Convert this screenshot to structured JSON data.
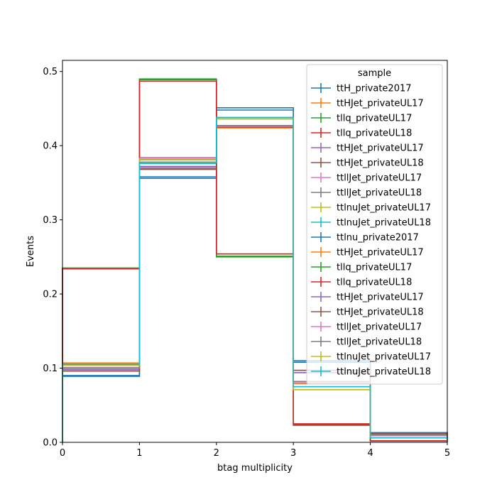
{
  "chart_data": {
    "type": "histogram-step",
    "xlabel": "btag multiplicity",
    "ylabel": "Events",
    "xlim": [
      0,
      5
    ],
    "ylim": [
      0,
      0.515
    ],
    "bin_edges": [
      0,
      1,
      2,
      3,
      4,
      5
    ],
    "xticks": [
      "0",
      "1",
      "2",
      "3",
      "4",
      "5"
    ],
    "yticks": [
      "0.0",
      "0.1",
      "0.2",
      "0.3",
      "0.4",
      "0.5"
    ],
    "legend": {
      "title": "sample",
      "placement": "upper right"
    },
    "series": [
      {
        "name": "ttH_private2017",
        "color": "#1f77b4",
        "values": [
          0.089,
          0.356,
          0.451,
          0.11,
          0.013
        ]
      },
      {
        "name": "ttHJet_privateUL17",
        "color": "#ff7f0e",
        "values": [
          0.107,
          0.377,
          0.424,
          0.079,
          0.01
        ]
      },
      {
        "name": "tllq_privateUL17",
        "color": "#2ca02c",
        "values": [
          0.235,
          0.49,
          0.25,
          0.023,
          0.002
        ]
      },
      {
        "name": "tllq_privateUL18",
        "color": "#d62728",
        "values": [
          0.234,
          0.487,
          0.254,
          0.025,
          0.002
        ]
      },
      {
        "name": "ttHJet_privateUL17",
        "color": "#9467bd",
        "values": [
          0.098,
          0.372,
          0.427,
          0.094,
          0.011
        ]
      },
      {
        "name": "ttHJet_privateUL18",
        "color": "#8c564b",
        "values": [
          0.096,
          0.368,
          0.425,
          0.097,
          0.012
        ]
      },
      {
        "name": "ttllJet_privateUL17",
        "color": "#e377c2",
        "values": [
          0.101,
          0.384,
          0.426,
          0.08,
          0.009
        ]
      },
      {
        "name": "ttllJet_privateUL18",
        "color": "#7f7f7f",
        "values": [
          0.1,
          0.381,
          0.427,
          0.082,
          0.01
        ]
      },
      {
        "name": "ttlnuJet_privateUL17",
        "color": "#bcbd22",
        "values": [
          0.104,
          0.381,
          0.436,
          0.071,
          0.006
        ]
      },
      {
        "name": "ttlnuJet_privateUL18",
        "color": "#17becf",
        "values": [
          0.105,
          0.376,
          0.438,
          0.075,
          0.006
        ]
      },
      {
        "name": "ttlnu_private2017",
        "color": "#1f77b4",
        "values": [
          0.09,
          0.358,
          0.448,
          0.108,
          0.013
        ]
      },
      {
        "name": "ttHJet_privateUL17",
        "color": "#ff7f0e",
        "values": [
          0.106,
          0.378,
          0.424,
          0.08,
          0.01
        ]
      },
      {
        "name": "tllq_privateUL17",
        "color": "#2ca02c",
        "values": [
          0.235,
          0.489,
          0.251,
          0.023,
          0.002
        ]
      },
      {
        "name": "tllq_privateUL18",
        "color": "#d62728",
        "values": [
          0.234,
          0.487,
          0.254,
          0.024,
          0.002
        ]
      },
      {
        "name": "ttHJet_privateUL17",
        "color": "#9467bd",
        "values": [
          0.098,
          0.371,
          0.426,
          0.094,
          0.011
        ]
      },
      {
        "name": "ttHJet_privateUL18",
        "color": "#8c564b",
        "values": [
          0.096,
          0.369,
          0.425,
          0.097,
          0.012
        ]
      },
      {
        "name": "ttllJet_privateUL17",
        "color": "#e377c2",
        "values": [
          0.101,
          0.383,
          0.426,
          0.08,
          0.009
        ]
      },
      {
        "name": "ttllJet_privateUL18",
        "color": "#7f7f7f",
        "values": [
          0.1,
          0.381,
          0.427,
          0.082,
          0.01
        ]
      },
      {
        "name": "ttlnuJet_privateUL17",
        "color": "#bcbd22",
        "values": [
          0.104,
          0.381,
          0.436,
          0.071,
          0.006
        ]
      },
      {
        "name": "ttlnuJet_privateUL18",
        "color": "#17becf",
        "values": [
          0.105,
          0.377,
          0.438,
          0.075,
          0.006
        ]
      }
    ]
  }
}
